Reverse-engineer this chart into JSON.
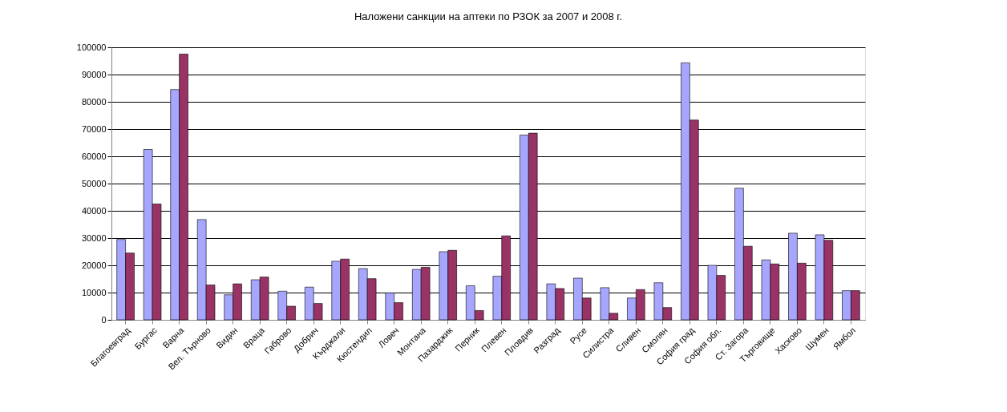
{
  "chart_data": {
    "type": "bar",
    "title": "Наложени санкции на аптеки по РЗОК за 2007 и 2008 г.",
    "categories": [
      "Благоевград",
      "Бургас",
      "Варна",
      "Вел. Търново",
      "Видин",
      "Враца",
      "Габрово",
      "Добрич",
      "Кърджали",
      "Кюстендил",
      "Ловеч",
      "Монтана",
      "Пазарджик",
      "Перник",
      "Плевен",
      "Пловдив",
      "Разград",
      "Русе",
      "Силистра",
      "Сливен",
      "Смолян",
      "София град",
      "София обл.",
      "Ст. Загора",
      "Търговище",
      "Хасково",
      "Шумен",
      "Ямбол"
    ],
    "series": [
      {
        "color": "#a6a6ff",
        "values": [
          29500,
          62500,
          84500,
          36800,
          9200,
          14700,
          10500,
          12000,
          21500,
          18800,
          9900,
          18500,
          25000,
          12500,
          16000,
          67800,
          13200,
          15300,
          11800,
          8000,
          13600,
          94300,
          20000,
          48300,
          22000,
          31800,
          31200,
          10700
        ]
      },
      {
        "color": "#993366",
        "values": [
          24500,
          42500,
          97500,
          12800,
          13200,
          15700,
          5000,
          6000,
          22300,
          15100,
          6300,
          19300,
          25500,
          3400,
          30800,
          68500,
          11500,
          8000,
          2400,
          11100,
          4500,
          73300,
          16300,
          27000,
          20500,
          20800,
          29200,
          10700
        ]
      }
    ],
    "ylim": [
      0,
      100000
    ],
    "yticks": [
      0,
      10000,
      20000,
      30000,
      40000,
      50000,
      60000,
      70000,
      80000,
      90000,
      100000
    ],
    "grid": "y",
    "legend": false
  }
}
